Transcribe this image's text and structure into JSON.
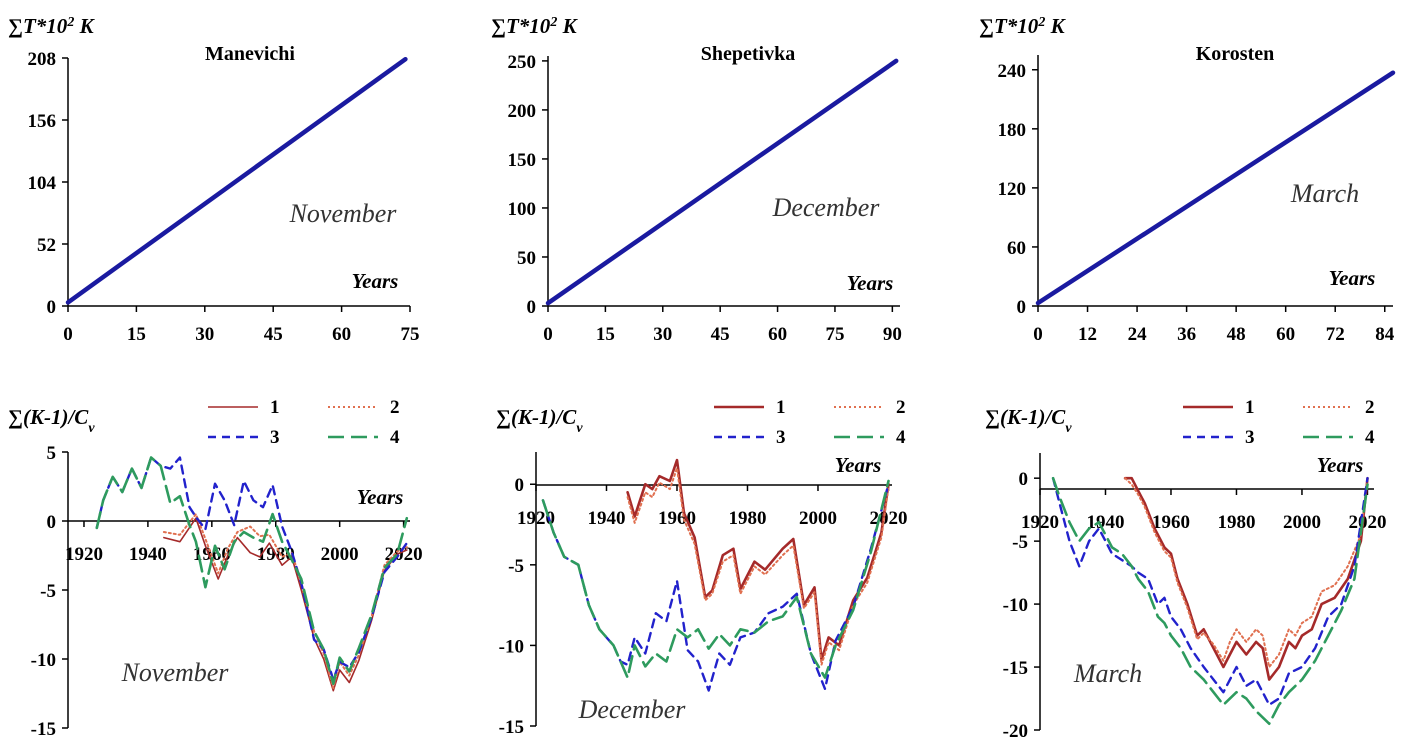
{
  "legend_labels": [
    "1",
    "2",
    "3",
    "4"
  ],
  "series_colors": [
    "#a52a2a",
    "#e07050",
    "#2222cc",
    "#2e9b5e",
    "#1a1aa0"
  ],
  "chart_data": [
    {
      "type": "line",
      "title": "Manevichi",
      "ylabel_main": "∑T*10",
      "ylabel_sup": "2",
      "ylabel_unit": " K",
      "xlabel": "Years",
      "annotation": "November",
      "xlim": [
        0,
        75
      ],
      "ylim": [
        0,
        208
      ],
      "xticks": [
        0,
        15,
        30,
        45,
        60,
        75
      ],
      "yticks": [
        0,
        52,
        104,
        156,
        208
      ],
      "series": [
        {
          "x": [
            0,
            74
          ],
          "y": [
            3,
            207
          ]
        }
      ]
    },
    {
      "type": "line",
      "title": "Shepetivka",
      "ylabel_main": "∑T*10",
      "ylabel_sup": "2",
      "ylabel_unit": " K",
      "xlabel": "Years",
      "annotation": "December",
      "xlim": [
        0,
        92
      ],
      "ylim": [
        0,
        255
      ],
      "xticks": [
        0,
        15,
        30,
        45,
        60,
        75,
        90
      ],
      "yticks": [
        0,
        50,
        100,
        150,
        200,
        250
      ],
      "series": [
        {
          "x": [
            0,
            91
          ],
          "y": [
            3,
            250
          ]
        }
      ]
    },
    {
      "type": "line",
      "title": "Korosten",
      "ylabel_main": "∑T*10",
      "ylabel_sup": "2",
      "ylabel_unit": " K",
      "xlabel": "Years",
      "annotation": "March",
      "xlim": [
        0,
        86
      ],
      "ylim": [
        0,
        255
      ],
      "xticks": [
        0,
        12,
        24,
        36,
        48,
        60,
        72,
        84
      ],
      "yticks": [
        0,
        60,
        120,
        180,
        240
      ],
      "series": [
        {
          "x": [
            0,
            86
          ],
          "y": [
            3,
            237
          ]
        }
      ]
    },
    {
      "type": "line",
      "ylabel_main": "∑(K-1)/C",
      "ylabel_sub": "v",
      "xlabel": "Years",
      "annotation": "November",
      "xlim": [
        1915,
        2022
      ],
      "ylim": [
        -15,
        5
      ],
      "xticks": [
        1920,
        1940,
        1960,
        1980,
        2000,
        2020
      ],
      "yticks": [
        -15,
        -10,
        -5,
        0,
        5
      ],
      "series": [
        {
          "x": [
            1945,
            1950,
            1955,
            1958,
            1962,
            1965,
            1968,
            1972,
            1975,
            1978,
            1982,
            1985,
            1988,
            1992,
            1995,
            1998,
            2000,
            2003,
            2006,
            2010,
            2014,
            2018,
            2021
          ],
          "y": [
            -1.2,
            -1.5,
            0.2,
            -1.8,
            -4.2,
            -2.5,
            -1.2,
            -2.3,
            -2.6,
            -1.6,
            -3.2,
            -2.6,
            -5.0,
            -8.5,
            -10.0,
            -12.3,
            -10.8,
            -11.7,
            -10.1,
            -7.2,
            -3.6,
            -2.4,
            -2.1
          ]
        },
        {
          "x": [
            1945,
            1950,
            1955,
            1958,
            1962,
            1965,
            1968,
            1972,
            1975,
            1978,
            1982,
            1985,
            1988,
            1992,
            1995,
            1998,
            2000,
            2003,
            2006,
            2010,
            2014,
            2018,
            2021
          ],
          "y": [
            -0.8,
            -1.0,
            0.5,
            -1.3,
            -3.8,
            -2.0,
            -0.8,
            -0.4,
            -1.1,
            -1.0,
            -2.6,
            -2.3,
            -4.5,
            -8.0,
            -9.6,
            -12.1,
            -10.2,
            -11.2,
            -9.7,
            -6.9,
            -3.2,
            -2.2,
            -1.9
          ]
        },
        {
          "x": [
            1924,
            1926,
            1929,
            1932,
            1935,
            1938,
            1941,
            1944,
            1947,
            1950,
            1953,
            1955,
            1958,
            1961,
            1964,
            1967,
            1970,
            1973,
            1976,
            1979,
            1982,
            1985,
            1988,
            1992,
            1995,
            1998,
            2000,
            2003,
            2006,
            2010,
            2014,
            2018,
            2021
          ],
          "y": [
            -0.5,
            1.5,
            3.2,
            2.1,
            3.8,
            2.4,
            4.6,
            4.0,
            3.8,
            4.6,
            1.0,
            0.3,
            -0.6,
            2.7,
            1.5,
            -0.3,
            2.9,
            1.5,
            1.0,
            2.6,
            -0.4,
            -2.2,
            -4.5,
            -8.6,
            -9.3,
            -11.5,
            -10.2,
            -10.6,
            -9.5,
            -7.0,
            -3.7,
            -2.6,
            -1.6
          ]
        },
        {
          "x": [
            1924,
            1926,
            1929,
            1932,
            1935,
            1938,
            1941,
            1944,
            1947,
            1950,
            1953,
            1955,
            1958,
            1961,
            1964,
            1967,
            1970,
            1973,
            1976,
            1979,
            1982,
            1985,
            1988,
            1992,
            1995,
            1998,
            2000,
            2003,
            2006,
            2010,
            2014,
            2018,
            2021
          ],
          "y": [
            -0.5,
            1.5,
            3.2,
            2.1,
            3.8,
            2.4,
            4.6,
            4.0,
            1.3,
            1.8,
            -0.3,
            -1.5,
            -4.8,
            -1.8,
            -3.5,
            -1.5,
            -0.8,
            -1.2,
            -1.5,
            0.5,
            -1.5,
            -2.8,
            -4.2,
            -8.0,
            -9.3,
            -11.8,
            -9.9,
            -10.9,
            -9.2,
            -6.8,
            -3.4,
            -2.4,
            0.2
          ]
        }
      ]
    },
    {
      "type": "line",
      "ylabel_main": "∑(K-1)/C",
      "ylabel_sub": "v",
      "xlabel": "Years",
      "annotation": "December",
      "xlim": [
        1920,
        2021
      ],
      "ylim": [
        -15,
        2
      ],
      "xticks": [
        1920,
        1940,
        1960,
        1980,
        2000,
        2020
      ],
      "yticks": [
        -15,
        -10,
        -5,
        0
      ],
      "series": [
        {
          "x": [
            1946,
            1948,
            1951,
            1953,
            1955,
            1958,
            1960,
            1962,
            1965,
            1968,
            1970,
            1973,
            1976,
            1978,
            1982,
            1985,
            1990,
            1993,
            1996,
            1999,
            2001,
            2003,
            2006,
            2010,
            2014,
            2018,
            2020
          ],
          "y": [
            -0.5,
            -2.0,
            0.0,
            -0.3,
            0.5,
            0.2,
            1.5,
            -1.8,
            -3.3,
            -7.0,
            -6.6,
            -4.4,
            -4.0,
            -6.5,
            -4.8,
            -5.3,
            -4.0,
            -3.4,
            -7.5,
            -6.4,
            -10.9,
            -9.5,
            -10.0,
            -7.2,
            -5.8,
            -3.0,
            0.0
          ]
        },
        {
          "x": [
            1946,
            1948,
            1951,
            1953,
            1955,
            1958,
            1960,
            1962,
            1965,
            1968,
            1970,
            1973,
            1976,
            1978,
            1982,
            1985,
            1990,
            1993,
            1996,
            1999,
            2001,
            2003,
            2006,
            2010,
            2014,
            2018,
            2020
          ],
          "y": [
            -0.8,
            -2.4,
            -0.5,
            -0.8,
            0.1,
            -0.3,
            1.0,
            -2.2,
            -3.7,
            -7.2,
            -6.8,
            -4.8,
            -4.4,
            -6.8,
            -5.1,
            -5.6,
            -4.4,
            -3.8,
            -7.7,
            -6.7,
            -11.2,
            -9.8,
            -10.3,
            -7.5,
            -6.1,
            -3.3,
            -0.2
          ]
        },
        {
          "x": [
            1922,
            1925,
            1928,
            1932,
            1935,
            1938,
            1940,
            1942,
            1944,
            1946,
            1948,
            1951,
            1954,
            1957,
            1960,
            1963,
            1966,
            1969,
            1972,
            1975,
            1978,
            1982,
            1986,
            1990,
            1994,
            1998,
            2002,
            2005,
            2010,
            2015,
            2020
          ],
          "y": [
            -1.0,
            -3.0,
            -4.5,
            -5.0,
            -7.5,
            -9.0,
            -9.5,
            -10.0,
            -11.0,
            -11.2,
            -9.5,
            -10.5,
            -8.0,
            -8.5,
            -6.0,
            -10.3,
            -11.0,
            -12.8,
            -10.5,
            -11.2,
            -9.5,
            -9.2,
            -8.0,
            -7.6,
            -6.8,
            -10.5,
            -12.7,
            -9.7,
            -7.6,
            -4.0,
            0.0
          ]
        },
        {
          "x": [
            1922,
            1925,
            1928,
            1932,
            1935,
            1938,
            1940,
            1942,
            1944,
            1946,
            1948,
            1951,
            1954,
            1957,
            1960,
            1963,
            1966,
            1969,
            1972,
            1975,
            1978,
            1982,
            1986,
            1990,
            1994,
            1998,
            2002,
            2005,
            2010,
            2015,
            2020
          ],
          "y": [
            -1.0,
            -3.0,
            -4.5,
            -5.0,
            -7.5,
            -9.0,
            -9.5,
            -10.0,
            -11.0,
            -12.0,
            -10.0,
            -11.3,
            -10.5,
            -11.0,
            -9.0,
            -9.5,
            -9.0,
            -10.2,
            -9.3,
            -10.0,
            -9.0,
            -9.2,
            -8.5,
            -8.2,
            -7.0,
            -10.5,
            -12.0,
            -10.0,
            -7.8,
            -4.2,
            0.2
          ]
        }
      ]
    },
    {
      "type": "line",
      "ylabel_main": "∑(K-1)/C",
      "ylabel_sub": "v",
      "xlabel": "Years",
      "annotation": "March",
      "xlim": [
        1920,
        2022
      ],
      "ylim": [
        -20,
        2
      ],
      "xticks": [
        1920,
        1940,
        1960,
        1980,
        2000,
        2020
      ],
      "yticks": [
        -20,
        -15,
        -10,
        -5,
        0
      ],
      "series": [
        {
          "x": [
            1946,
            1948,
            1950,
            1952,
            1955,
            1958,
            1960,
            1962,
            1965,
            1968,
            1970,
            1973,
            1976,
            1978,
            1980,
            1983,
            1986,
            1988,
            1990,
            1993,
            1996,
            1998,
            2000,
            2003,
            2006,
            2010,
            2014,
            2018,
            2020
          ],
          "y": [
            0.0,
            0.0,
            -1.0,
            -2.0,
            -4.0,
            -5.5,
            -6.0,
            -8.0,
            -10.0,
            -12.5,
            -12.0,
            -13.5,
            -15.0,
            -14.0,
            -13.0,
            -14.0,
            -13.0,
            -13.5,
            -16.0,
            -15.0,
            -13.0,
            -13.5,
            -12.5,
            -12.0,
            -10.0,
            -9.5,
            -8.0,
            -5.0,
            0.0
          ]
        },
        {
          "x": [
            1946,
            1948,
            1950,
            1952,
            1955,
            1958,
            1960,
            1962,
            1965,
            1968,
            1970,
            1973,
            1976,
            1978,
            1980,
            1983,
            1986,
            1988,
            1990,
            1993,
            1996,
            1998,
            2000,
            2003,
            2006,
            2010,
            2014,
            2018,
            2020
          ],
          "y": [
            0.0,
            -0.5,
            -1.3,
            -2.3,
            -4.3,
            -5.8,
            -6.3,
            -8.3,
            -10.3,
            -12.8,
            -12.3,
            -13.2,
            -14.5,
            -13.0,
            -12.0,
            -13.0,
            -12.0,
            -12.5,
            -15.0,
            -14.0,
            -12.0,
            -12.5,
            -11.5,
            -11.0,
            -9.0,
            -8.5,
            -7.0,
            -4.5,
            0.0
          ]
        },
        {
          "x": [
            1924,
            1926,
            1929,
            1932,
            1935,
            1938,
            1940,
            1942,
            1945,
            1948,
            1950,
            1953,
            1956,
            1958,
            1960,
            1963,
            1966,
            1970,
            1973,
            1976,
            1980,
            1983,
            1986,
            1988,
            1990,
            1993,
            1996,
            2000,
            2004,
            2008,
            2012,
            2016,
            2020
          ],
          "y": [
            0.0,
            -2.0,
            -5.0,
            -7.0,
            -5.0,
            -4.0,
            -5.0,
            -6.0,
            -6.5,
            -7.0,
            -7.5,
            -8.0,
            -10.0,
            -9.5,
            -11.0,
            -12.0,
            -13.5,
            -15.0,
            -16.0,
            -17.0,
            -15.0,
            -16.5,
            -16.0,
            -17.0,
            -18.0,
            -17.5,
            -15.5,
            -15.0,
            -13.5,
            -11.0,
            -10.0,
            -7.0,
            0.0
          ]
        },
        {
          "x": [
            1924,
            1926,
            1929,
            1932,
            1935,
            1938,
            1940,
            1942,
            1945,
            1948,
            1950,
            1953,
            1956,
            1958,
            1960,
            1963,
            1966,
            1970,
            1973,
            1976,
            1980,
            1983,
            1986,
            1988,
            1990,
            1993,
            1996,
            2000,
            2004,
            2008,
            2012,
            2016,
            2020
          ],
          "y": [
            0.0,
            -1.5,
            -3.5,
            -5.0,
            -4.0,
            -3.5,
            -4.5,
            -5.5,
            -6.0,
            -7.0,
            -8.0,
            -9.0,
            -11.0,
            -11.5,
            -12.5,
            -13.5,
            -15.0,
            -16.0,
            -17.0,
            -18.0,
            -17.0,
            -17.5,
            -18.5,
            -19.0,
            -19.5,
            -18.0,
            -17.0,
            -16.0,
            -14.5,
            -12.5,
            -10.5,
            -8.0,
            -0.5
          ]
        }
      ]
    }
  ]
}
